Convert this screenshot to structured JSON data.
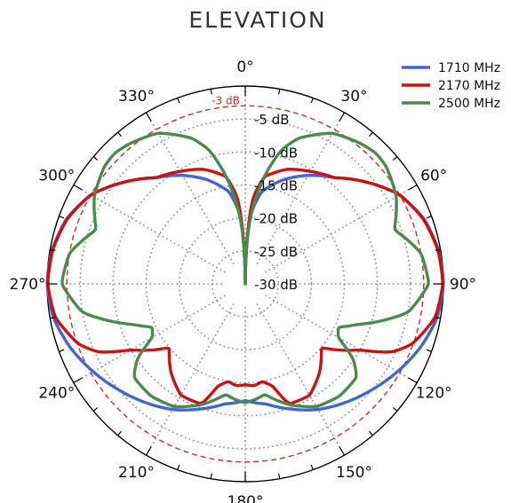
{
  "chart_data": {
    "type": "line",
    "subtype": "polar",
    "title": "ELEVATION",
    "angle_labels": [
      "0°",
      "30°",
      "60°",
      "90°",
      "120°",
      "150°",
      "180°",
      "210°",
      "240°",
      "270°",
      "300°",
      "330°"
    ],
    "ring_labels": [
      "-5 dB",
      "-10 dB",
      "-15 dB",
      "-20 dB",
      "-25 dB",
      "-30 dB"
    ],
    "ring_values": [
      -5,
      -10,
      -15,
      -20,
      -25,
      -30
    ],
    "reference_ring": {
      "label": "-3 dB",
      "value": -3,
      "color": "#d12a2a"
    },
    "r_range_db": [
      -30,
      0
    ],
    "angle_direction": "clockwise",
    "zero_at": "top",
    "grid": true,
    "legend_position": "top-right",
    "series": [
      {
        "name": "1710 MHz",
        "color": "#3e66d6",
        "angles_deg": [
          0,
          3,
          5,
          10,
          20,
          30,
          40,
          50,
          60,
          70,
          80,
          90,
          100,
          110,
          120,
          130,
          140,
          150,
          160,
          170,
          180
        ],
        "values_db": [
          -30,
          -22,
          -19,
          -15.8,
          -13.2,
          -11.0,
          -9.0,
          -6.0,
          -3.0,
          -1.2,
          -0.3,
          0,
          -0.5,
          -1.8,
          -3.4,
          -5.0,
          -6.5,
          -8.0,
          -9.8,
          -11.5,
          -12.3
        ]
      },
      {
        "name": "2170 MHz",
        "color": "#d10f0f",
        "angles_deg": [
          0,
          3,
          5,
          10,
          20,
          30,
          40,
          50,
          60,
          70,
          80,
          90,
          100,
          110,
          115,
          120,
          130,
          140,
          150,
          160,
          165,
          170,
          175,
          180
        ],
        "values_db": [
          -30,
          -21,
          -17,
          -13.5,
          -11.5,
          -10.3,
          -9.0,
          -6.0,
          -3.0,
          -1.3,
          -0.4,
          -0.1,
          -0.8,
          -3.2,
          -5.5,
          -10.0,
          -15.0,
          -12.5,
          -10.5,
          -10.6,
          -14.0,
          -15.0,
          -14.5,
          -14.7
        ]
      },
      {
        "name": "2500 MHz",
        "color": "#4b8a4f",
        "angles_deg": [
          0,
          3,
          6,
          10,
          15,
          20,
          30,
          40,
          45,
          50,
          60,
          70,
          80,
          90,
          100,
          110,
          115,
          120,
          125,
          130,
          140,
          150,
          160,
          170,
          175,
          180
        ],
        "values_db": [
          -30,
          -22,
          -18,
          -13.5,
          -9.0,
          -6.5,
          -3.6,
          -2.4,
          -2.0,
          -2.2,
          -3.6,
          -6.0,
          -3.0,
          -2.2,
          -5.0,
          -12.0,
          -14.5,
          -13.8,
          -10.0,
          -8.0,
          -7.8,
          -8.5,
          -10.5,
          -13.0,
          -12.4,
          -12.0
        ]
      }
    ]
  }
}
